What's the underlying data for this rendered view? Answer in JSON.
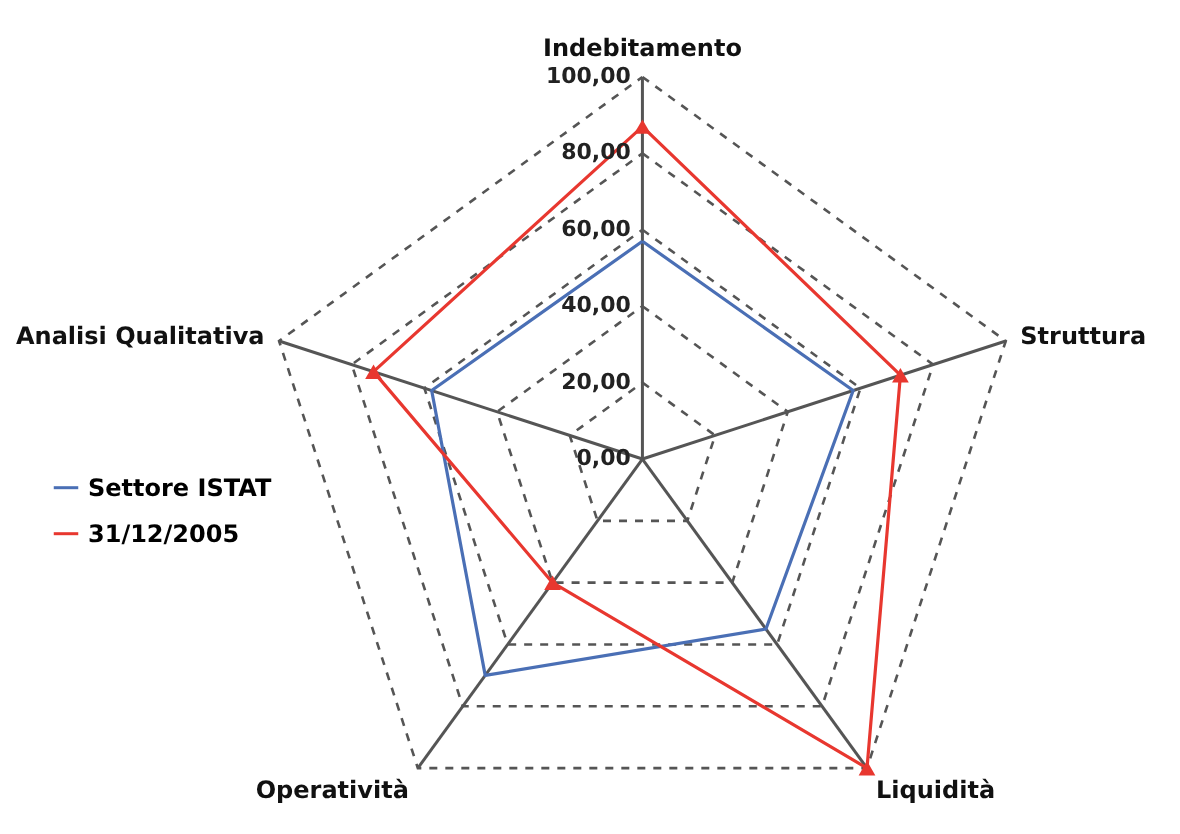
{
  "chart_data": {
    "type": "radar",
    "categories": [
      "Indebitamento",
      "Struttura",
      "Liquidità",
      "Operatività",
      "Analisi Qualitativa"
    ],
    "series": [
      {
        "name": "Settore ISTAT",
        "color": "#4a6fb5",
        "values": [
          57,
          58,
          55,
          70,
          58
        ],
        "marker": "none"
      },
      {
        "name": "31/12/2005",
        "color": "#e8372f",
        "values": [
          87,
          71,
          100,
          40,
          74
        ],
        "marker": "triangle"
      }
    ],
    "ylim": [
      0,
      100
    ],
    "yticks": [
      {
        "value": 0,
        "label": "0,00"
      },
      {
        "value": 20,
        "label": "20,00"
      },
      {
        "value": 40,
        "label": "40,00"
      },
      {
        "value": 60,
        "label": "60,00"
      },
      {
        "value": 80,
        "label": "80,00"
      },
      {
        "value": 100,
        "label": "100,00"
      }
    ],
    "grid": true,
    "legend": "left",
    "line_style": "solid"
  }
}
